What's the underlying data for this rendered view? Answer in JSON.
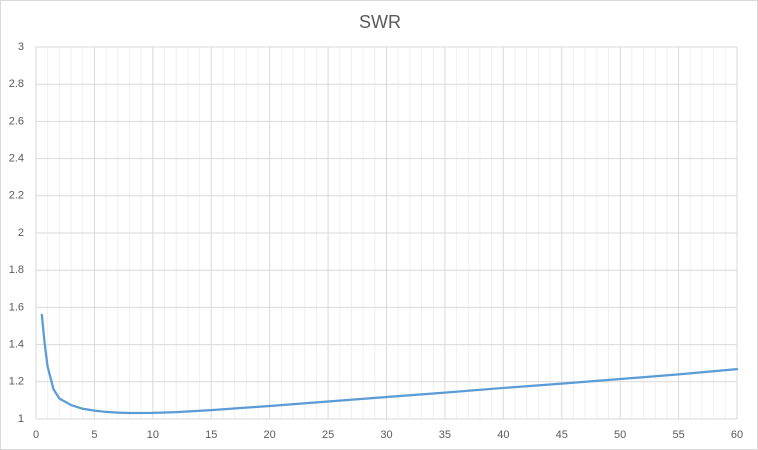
{
  "chart_data": {
    "type": "line",
    "title": "SWR",
    "x": [
      0.5,
      0.75,
      1,
      1.5,
      2,
      3,
      4,
      5,
      6,
      7,
      8,
      10,
      12,
      15,
      20,
      25,
      30,
      35,
      40,
      45,
      50,
      55,
      60
    ],
    "series": [
      {
        "color": "#5b9bd5",
        "values": [
          1.56,
          1.4,
          1.28,
          1.16,
          1.11,
          1.075,
          1.055,
          1.045,
          1.038,
          1.034,
          1.032,
          1.033,
          1.037,
          1.048,
          1.07,
          1.094,
          1.118,
          1.142,
          1.167,
          1.19,
          1.215,
          1.24,
          1.268
        ]
      }
    ],
    "xlim": [
      0,
      60
    ],
    "xticks": [
      0,
      5,
      10,
      15,
      20,
      25,
      30,
      35,
      40,
      45,
      50,
      55,
      60
    ],
    "x_minor_ticks": [
      1,
      2,
      3,
      4,
      6,
      7,
      8,
      9,
      11,
      12,
      13,
      14,
      16,
      17,
      18,
      19,
      21,
      22,
      23,
      24,
      26,
      27,
      28,
      29,
      31,
      32,
      33,
      34,
      36,
      37,
      38,
      39,
      41,
      42,
      43,
      44,
      46,
      47,
      48,
      49,
      51,
      52,
      53,
      54,
      56,
      57,
      58,
      59
    ],
    "ylim": [
      1,
      3
    ],
    "yticks": [
      1,
      1.2,
      1.4,
      1.6,
      1.8,
      2,
      2.2,
      2.4,
      2.6,
      2.8,
      3
    ],
    "grid": true
  }
}
